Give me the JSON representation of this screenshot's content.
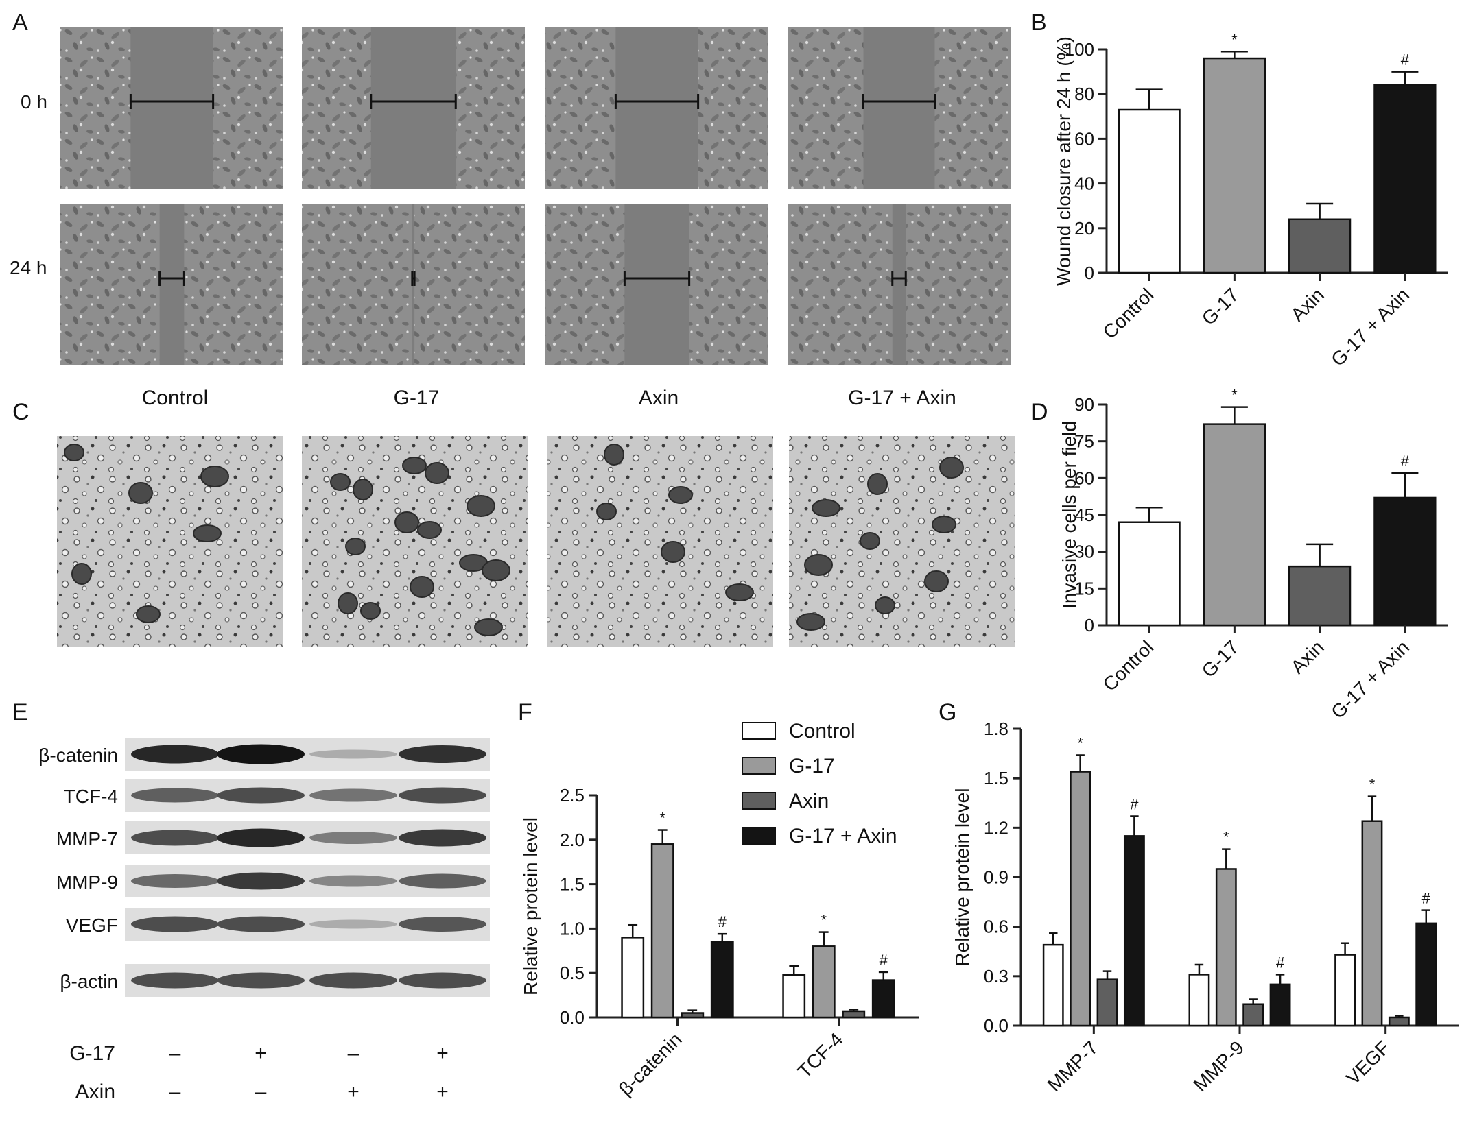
{
  "panels": {
    "A": "A",
    "B": "B",
    "C": "C",
    "D": "D",
    "E": "E",
    "F": "F",
    "G": "G"
  },
  "panel_a": {
    "row_labels": [
      "0 h",
      "24 h"
    ],
    "gap_fraction_0h": [
      0.37,
      0.38,
      0.37,
      0.32
    ],
    "gap_fraction_24h": [
      0.11,
      0.01,
      0.29,
      0.06
    ]
  },
  "panel_c": {
    "group_labels": [
      "Control",
      "G-17",
      "Axin",
      "G-17 + Axin"
    ]
  },
  "colors": {
    "control": "#ffffff",
    "g17": "#9a9a9a",
    "axin": "#5f5f5f",
    "g17_axin": "#141414",
    "axis": "#222222"
  },
  "western_blot": {
    "bands": [
      "β-catenin",
      "TCF-4",
      "MMP-7",
      "MMP-9",
      "VEGF",
      "β-actin"
    ],
    "intensity": [
      [
        0.85,
        0.95,
        0.15,
        0.8
      ],
      [
        0.55,
        0.65,
        0.45,
        0.65
      ],
      [
        0.65,
        0.85,
        0.4,
        0.75
      ],
      [
        0.5,
        0.75,
        0.35,
        0.55
      ],
      [
        0.65,
        0.65,
        0.15,
        0.6
      ],
      [
        0.65,
        0.65,
        0.65,
        0.65
      ]
    ],
    "treatments": [
      {
        "label": "G-17",
        "values": [
          "–",
          "+",
          "–",
          "+"
        ]
      },
      {
        "label": "Axin",
        "values": [
          "–",
          "–",
          "+",
          "+"
        ]
      }
    ]
  },
  "chart_data": [
    {
      "id": "B",
      "type": "bar",
      "categories": [
        "Control",
        "G-17",
        "Axin",
        "G-17 + Axin"
      ],
      "values": [
        73,
        96,
        24,
        84
      ],
      "errors": [
        9,
        3,
        7,
        6
      ],
      "sig": [
        "",
        "*",
        "",
        "#"
      ],
      "ylabel": "Wound closure after 24 h (%)",
      "ylim": [
        0,
        100
      ],
      "yticks": [
        0,
        20,
        40,
        60,
        80,
        100
      ]
    },
    {
      "id": "D",
      "type": "bar",
      "categories": [
        "Control",
        "G-17",
        "Axin",
        "G-17 + Axin"
      ],
      "values": [
        42,
        82,
        24,
        52
      ],
      "errors": [
        6,
        7,
        9,
        10
      ],
      "sig": [
        "",
        "*",
        "",
        "#"
      ],
      "ylabel": "Invasive cells per field",
      "ylim": [
        0,
        90
      ],
      "yticks": [
        0,
        15,
        30,
        45,
        60,
        75,
        90
      ]
    },
    {
      "id": "F",
      "type": "bar",
      "categories": [
        "β-catenin",
        "TCF-4"
      ],
      "series": [
        {
          "name": "Control",
          "values": [
            0.9,
            0.48
          ],
          "errors": [
            0.14,
            0.1
          ],
          "sig": [
            "",
            ""
          ]
        },
        {
          "name": "G-17",
          "values": [
            1.95,
            0.8
          ],
          "errors": [
            0.16,
            0.16
          ],
          "sig": [
            "*",
            "*"
          ]
        },
        {
          "name": "Axin",
          "values": [
            0.05,
            0.07
          ],
          "errors": [
            0.03,
            0.02
          ],
          "sig": [
            "",
            ""
          ]
        },
        {
          "name": "G-17 + Axin",
          "values": [
            0.85,
            0.42
          ],
          "errors": [
            0.09,
            0.09
          ],
          "sig": [
            "#",
            "#"
          ]
        }
      ],
      "ylabel": "Relative protein level",
      "ylim": [
        0,
        2.5
      ],
      "yticks": [
        "0.0",
        "0.5",
        "1.0",
        "1.5",
        "2.0",
        "2.5"
      ],
      "legend": "top-right"
    },
    {
      "id": "G",
      "type": "bar",
      "categories": [
        "MMP-7",
        "MMP-9",
        "VEGF"
      ],
      "series": [
        {
          "name": "Control",
          "values": [
            0.49,
            0.31,
            0.43
          ],
          "errors": [
            0.07,
            0.06,
            0.07
          ],
          "sig": [
            "",
            "",
            ""
          ]
        },
        {
          "name": "G-17",
          "values": [
            1.54,
            0.95,
            1.24
          ],
          "errors": [
            0.1,
            0.12,
            0.15
          ],
          "sig": [
            "*",
            "*",
            "*"
          ]
        },
        {
          "name": "Axin",
          "values": [
            0.28,
            0.13,
            0.05
          ],
          "errors": [
            0.05,
            0.03,
            0.01
          ],
          "sig": [
            "",
            "",
            ""
          ]
        },
        {
          "name": "G-17 + Axin",
          "values": [
            1.15,
            0.25,
            0.62
          ],
          "errors": [
            0.12,
            0.06,
            0.08
          ],
          "sig": [
            "#",
            "#",
            "#"
          ]
        }
      ],
      "ylabel": "Relative protein level",
      "ylim": [
        0,
        1.8
      ],
      "yticks": [
        "0.0",
        "0.3",
        "0.6",
        "0.9",
        "1.2",
        "1.5",
        "1.8"
      ]
    }
  ]
}
